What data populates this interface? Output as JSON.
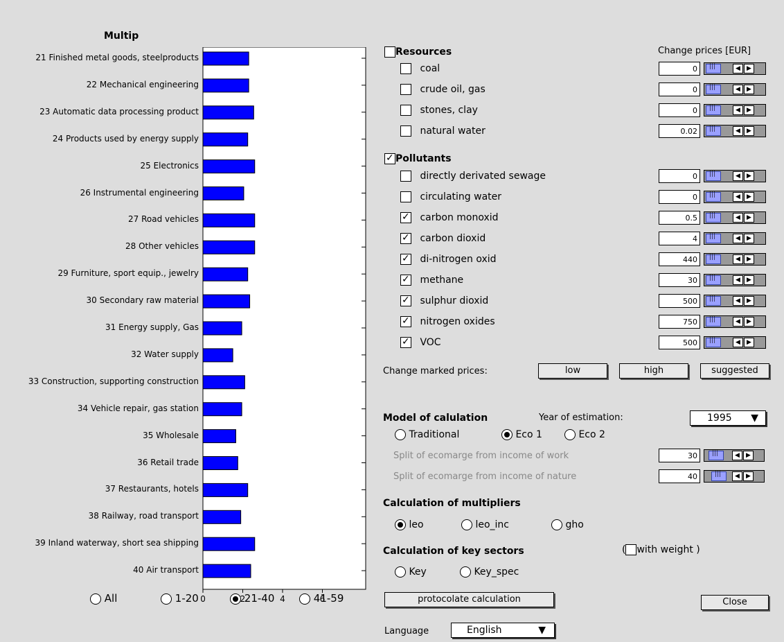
{
  "chart_data": {
    "type": "bar",
    "title": "Multip",
    "categories": [
      "21 Finished metal goods, steelproducts",
      "22 Mechanical engineering",
      "23 Automatic data processing product",
      "24 Products used by energy supply",
      "25 Electronics",
      "26 Instrumental engineering",
      "27 Road vehicles",
      "28 Other vehicles",
      "29 Furniture, sport equip., jewelry",
      "30 Secondary raw material",
      "31 Energy supply, Gas",
      "32 Water supply",
      "33 Construction, supporting construction",
      "34 Vehicle repair, gas station",
      "35 Wholesale",
      "36 Retail trade",
      "37 Restaurants, hotels",
      "38 Railway, road transport",
      "39 Inland waterway, short sea shipping",
      "40 Air transport"
    ],
    "values": [
      2.3,
      2.3,
      2.55,
      2.25,
      2.6,
      2.05,
      2.6,
      2.6,
      2.25,
      2.35,
      1.95,
      1.5,
      2.1,
      1.95,
      1.65,
      1.75,
      2.25,
      1.9,
      2.6,
      2.4
    ],
    "xticks": [
      "0",
      "2",
      "4",
      "6"
    ],
    "xlim": [
      0,
      8
    ],
    "bar_color": "#0000ff"
  },
  "range_radios": [
    {
      "label": "All",
      "selected": false
    },
    {
      "label": "1-20",
      "selected": false
    },
    {
      "label": "21-40",
      "selected": true
    },
    {
      "label": "41-59",
      "selected": false
    }
  ],
  "resources": {
    "title": "Resources",
    "checked": false,
    "change_prices_label": "Change prices [EUR]",
    "items": [
      {
        "label": "coal",
        "checked": false,
        "value": "0"
      },
      {
        "label": "crude oil, gas",
        "checked": false,
        "value": "0"
      },
      {
        "label": "stones, clay",
        "checked": false,
        "value": "0"
      },
      {
        "label": "natural water",
        "checked": false,
        "value": "0.02"
      }
    ]
  },
  "pollutants": {
    "title": "Pollutants",
    "checked": true,
    "items": [
      {
        "label": "directly derivated sewage",
        "checked": false,
        "value": "0"
      },
      {
        "label": "circulating water",
        "checked": false,
        "value": "0"
      },
      {
        "label": "carbon monoxid",
        "checked": true,
        "value": "0.5"
      },
      {
        "label": "carbon dioxid",
        "checked": true,
        "value": "4"
      },
      {
        "label": "di-nitrogen oxid",
        "checked": true,
        "value": "440"
      },
      {
        "label": "methane",
        "checked": true,
        "value": "30"
      },
      {
        "label": "sulphur dioxid",
        "checked": true,
        "value": "500"
      },
      {
        "label": "nitrogen oxides",
        "checked": true,
        "value": "750"
      },
      {
        "label": "VOC",
        "checked": true,
        "value": "500"
      }
    ]
  },
  "marked_prices": {
    "label": "Change  marked prices:",
    "low": "low",
    "high": "high",
    "suggested": "suggested"
  },
  "model": {
    "title": "Model of calulation",
    "year_label": "Year of estimation:",
    "year": "1995",
    "options": [
      {
        "label": "Traditional",
        "selected": false
      },
      {
        "label": "Eco 1",
        "selected": true
      },
      {
        "label": "Eco 2",
        "selected": false
      }
    ],
    "split_work_label": "Split of ecomarge from income of work",
    "split_work_value": "30",
    "split_nature_label": "Split of ecomarge from income of nature",
    "split_nature_value": "40"
  },
  "multipliers": {
    "title": "Calculation of multipliers",
    "options": [
      {
        "label": "leo",
        "selected": true
      },
      {
        "label": "leo_inc",
        "selected": false
      },
      {
        "label": "gho",
        "selected": false
      }
    ]
  },
  "key_sectors": {
    "title": "Calculation of key sectors",
    "weight_open": "(",
    "weight_label": "with weight )",
    "options": [
      {
        "label": "Key",
        "selected": false
      },
      {
        "label": "Key_spec",
        "selected": false
      }
    ]
  },
  "protocolate_label": "protocolate calculation",
  "close_label": "Close",
  "language_label": "Language",
  "language_value": "English"
}
